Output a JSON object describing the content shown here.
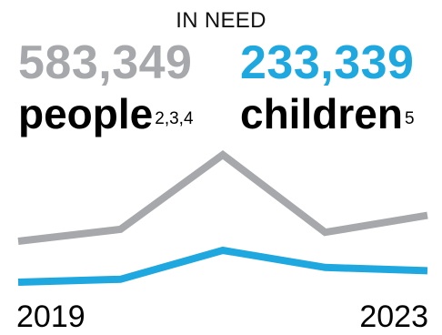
{
  "header": {
    "title": "IN NEED"
  },
  "stats": {
    "people": {
      "value": "583,349",
      "label": "people",
      "footnote": "2,3,4",
      "color": "#a6a8ab"
    },
    "children": {
      "value": "233,339",
      "label": "children",
      "footnote": "5",
      "color": "#1fa8df"
    }
  },
  "axis": {
    "start_label": "2019",
    "end_label": "2023"
  },
  "chart_data": {
    "type": "line",
    "x": [
      2019,
      2020,
      2021,
      2022,
      2023
    ],
    "series": [
      {
        "values": [
          540000,
          560000,
          685000,
          555000,
          583349
        ],
        "color": "#a6a8ab"
      },
      {
        "values": [
          210000,
          216000,
          275000,
          240000,
          233339
        ],
        "color": "#1fa8df"
      }
    ],
    "title": "IN NEED",
    "xlabel": "",
    "ylabel": "",
    "grid": false
  }
}
